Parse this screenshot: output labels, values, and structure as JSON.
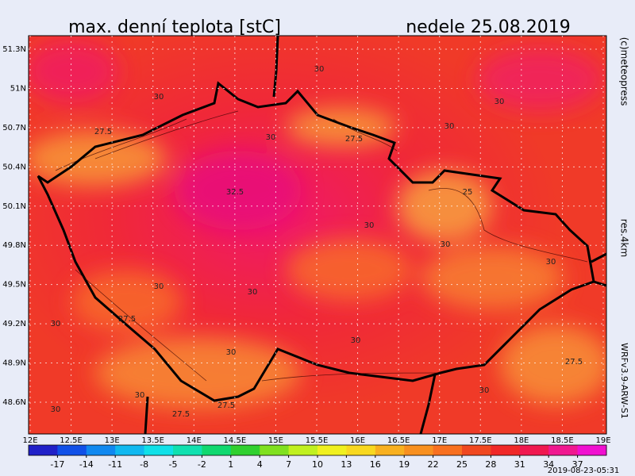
{
  "title": "max. denní teplota [stC]",
  "date": "nedele 25.08.2019",
  "copyright": "(c)meteopress",
  "resolution": "res.4km",
  "model": "WRFv3.9-ARW-S1",
  "issued": "2019-08-23-05:31",
  "lat_ticks": [
    {
      "value": 51.3,
      "label": "51.3N"
    },
    {
      "value": 51,
      "label": "51N"
    },
    {
      "value": 50.7,
      "label": "50.7N"
    },
    {
      "value": 50.4,
      "label": "50.4N"
    },
    {
      "value": 50.1,
      "label": "50.1N"
    },
    {
      "value": 49.8,
      "label": "49.8N"
    },
    {
      "value": 49.5,
      "label": "49.5N"
    },
    {
      "value": 49.2,
      "label": "49.2N"
    },
    {
      "value": 48.9,
      "label": "48.9N"
    },
    {
      "value": 48.6,
      "label": "48.6N"
    }
  ],
  "lon_ticks": [
    {
      "value": 12,
      "label": "12E"
    },
    {
      "value": 12.5,
      "label": "12.5E"
    },
    {
      "value": 13,
      "label": "13E"
    },
    {
      "value": 13.5,
      "label": "13.5E"
    },
    {
      "value": 14,
      "label": "14E"
    },
    {
      "value": 14.5,
      "label": "14.5E"
    },
    {
      "value": 15,
      "label": "15E"
    },
    {
      "value": 15.5,
      "label": "15.5E"
    },
    {
      "value": 16,
      "label": "16E"
    },
    {
      "value": 16.5,
      "label": "16.5E"
    },
    {
      "value": 17,
      "label": "17E"
    },
    {
      "value": 17.5,
      "label": "17.5E"
    },
    {
      "value": 18,
      "label": "18E"
    },
    {
      "value": 18.5,
      "label": "18.5E"
    },
    {
      "value": 19,
      "label": "19E"
    }
  ],
  "colorbar": {
    "range": [
      -20,
      40
    ],
    "ticks": [
      -17,
      -14,
      -11,
      -8,
      -5,
      -2,
      1,
      4,
      7,
      10,
      13,
      16,
      19,
      22,
      25,
      28,
      31,
      34,
      37
    ],
    "colors": [
      "#2020c8",
      "#1050e8",
      "#1088f0",
      "#10b8f0",
      "#10e0e8",
      "#10e0b0",
      "#10d870",
      "#30d030",
      "#80e020",
      "#c0f020",
      "#f0f020",
      "#f8d820",
      "#f8b020",
      "#f89020",
      "#f87020",
      "#f04820",
      "#f02828",
      "#f01850",
      "#f01890",
      "#f010d0"
    ]
  },
  "contour_labels": [
    30,
    30,
    30,
    27.5,
    30,
    30,
    27.5,
    32.5,
    25,
    30,
    30,
    30,
    30,
    30,
    27.5,
    30,
    30,
    30,
    27.5,
    30,
    30,
    30,
    27.5,
    27.5
  ]
}
